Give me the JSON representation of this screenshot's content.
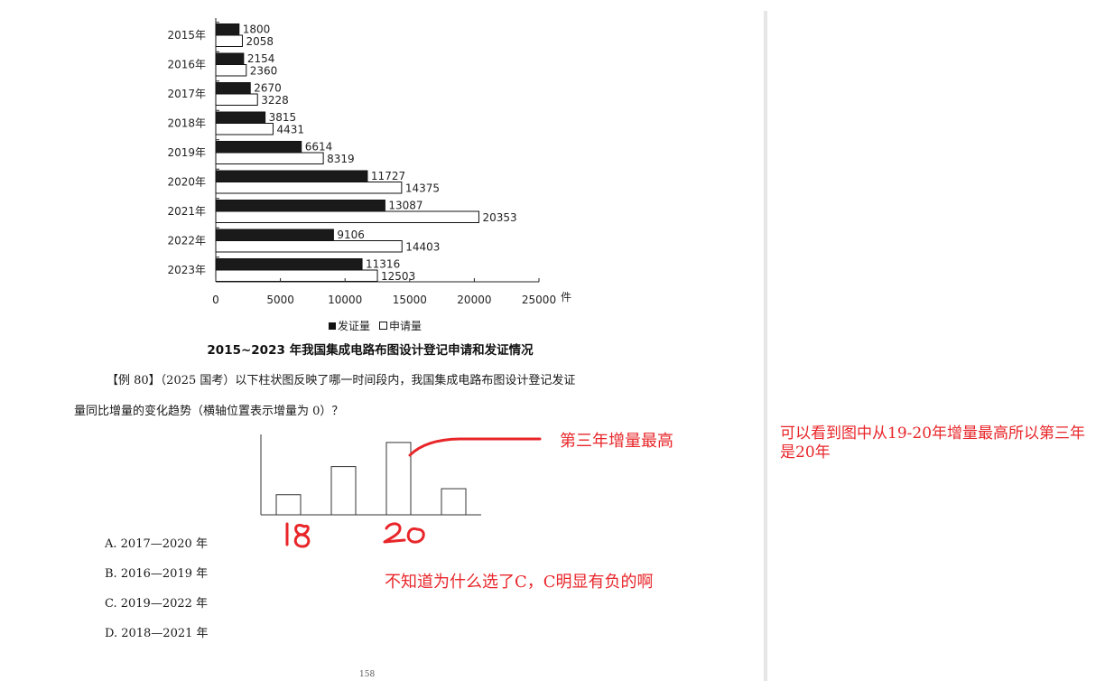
{
  "chart_data": [
    {
      "type": "bar",
      "orientation": "horizontal",
      "categories": [
        "2015年",
        "2016年",
        "2017年",
        "2018年",
        "2019年",
        "2020年",
        "2021年",
        "2022年",
        "2023年"
      ],
      "series": [
        {
          "name": "发证量",
          "color": "#1a1a1a",
          "values": [
            1800,
            2154,
            2670,
            3815,
            6614,
            11727,
            13087,
            9106,
            11316
          ]
        },
        {
          "name": "申请量",
          "color": "#ffffff",
          "values": [
            2058,
            2360,
            3228,
            4431,
            8319,
            14375,
            20353,
            14403,
            12503
          ]
        }
      ],
      "xticks": [
        "0",
        "5000",
        "10000",
        "15000",
        "20000",
        "25000"
      ],
      "xunit": "件",
      "xlim": [
        0,
        25000
      ],
      "legend": {
        "filled_label": "发证量",
        "empty_label": "申请量",
        "position": "bottom"
      },
      "title": "2015~2023 年我国集成电路布图设计登记申请和发证情况"
    },
    {
      "type": "bar",
      "categories": [
        "",
        "",
        "",
        ""
      ],
      "values": [
        1,
        2.4,
        3.6,
        1.3
      ],
      "note": "unlabeled option chart in question"
    }
  ],
  "question": {
    "line1": "【例 80】（2025 国考）以下柱状图反映了哪一时间段内，我国集成电路布图设计登记发证",
    "line2": "量同比增量的变化趋势（横轴位置表示增量为 0）？"
  },
  "options": [
    "A. 2017—2020 年",
    "B. 2016—2019 年",
    "C. 2019—2022 年",
    "D. 2018—2021 年"
  ],
  "annotations": {
    "arrow_note": "第三年增量最高",
    "hand_18": "18",
    "hand_20": "20",
    "doubt_note": "不知道为什么选了C，C明显有负的啊",
    "side_note": "可以看到图中从19-20年增量最高所以第三年是20年"
  },
  "page_number": "158",
  "colors": {
    "annotation_red": "#e8262a",
    "bar_dark": "#1a1a1a",
    "gutter": "#e6e6e6"
  }
}
